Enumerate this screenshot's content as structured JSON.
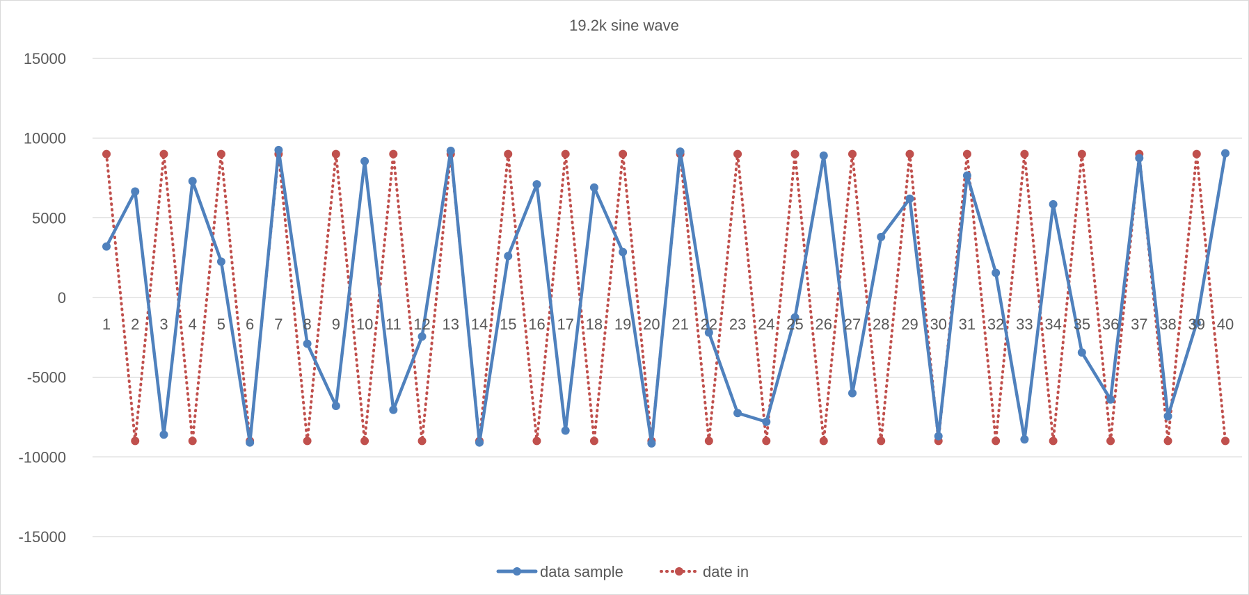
{
  "chart_data": {
    "type": "line",
    "title": "19.2k sine wave",
    "xlabel": "",
    "ylabel": "",
    "ylim": [
      -15000,
      15000
    ],
    "yticks": [
      15000,
      10000,
      5000,
      0,
      -5000,
      -10000,
      -15000
    ],
    "grid": true,
    "legend_position": "bottom",
    "categories": [
      1,
      2,
      3,
      4,
      5,
      6,
      7,
      8,
      9,
      10,
      11,
      12,
      13,
      14,
      15,
      16,
      17,
      18,
      19,
      20,
      21,
      22,
      23,
      24,
      25,
      26,
      27,
      28,
      29,
      30,
      31,
      32,
      33,
      34,
      35,
      36,
      37,
      38,
      39,
      40
    ],
    "series": [
      {
        "name": "data sample",
        "color": "#4f81bd",
        "style": "solid",
        "values": [
          3200,
          6650,
          -8600,
          7300,
          2250,
          -9100,
          9250,
          -2900,
          -6800,
          8550,
          -7050,
          -2450,
          9200,
          -9100,
          2600,
          7100,
          -8350,
          6900,
          2850,
          -9150,
          9150,
          -2200,
          -7250,
          -7800,
          -1250,
          8900,
          -6000,
          3800,
          6200,
          -8700,
          7650,
          1550,
          -8900,
          5850,
          -3450,
          -6400,
          8750,
          -7450,
          -1600,
          9050
        ]
      },
      {
        "name": "date in",
        "color": "#c0504d",
        "style": "dotted",
        "values": [
          9000,
          -9000,
          9000,
          -9000,
          9000,
          -9000,
          9000,
          -9000,
          9000,
          -9000,
          9000,
          -9000,
          9000,
          -9000,
          9000,
          -9000,
          9000,
          -9000,
          9000,
          -9000,
          9000,
          -9000,
          9000,
          -9000,
          9000,
          -9000,
          9000,
          -9000,
          9000,
          -9000,
          9000,
          -9000,
          9000,
          -9000,
          9000,
          -9000,
          9000,
          -9000,
          9000,
          -9000
        ]
      }
    ]
  }
}
